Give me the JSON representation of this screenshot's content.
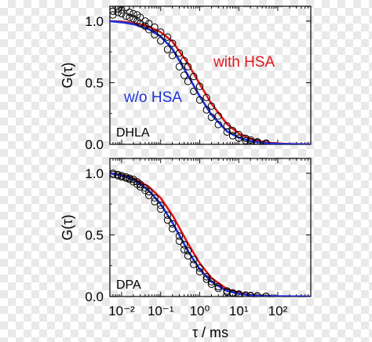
{
  "chart_data": [
    {
      "type": "line",
      "panel_label": "DHLA",
      "ylabel": "G(τ)",
      "xlabel": "",
      "xscale": "log",
      "xlim": [
        0.005,
        700
      ],
      "ylim": [
        0,
        1.12
      ],
      "x_tick_labels": [],
      "y_tick_labels": [
        "0.0",
        "0.5",
        "1.0"
      ],
      "y_ticks": [
        0,
        0.5,
        1.0
      ],
      "series": [
        {
          "name": "with HSA",
          "color": "#e0161b",
          "x": [
            0.005,
            0.01,
            0.02,
            0.05,
            0.1,
            0.2,
            0.5,
            1,
            2,
            5,
            10,
            20,
            50,
            100,
            200,
            500,
            700
          ],
          "y": [
            1.0,
            0.995,
            0.985,
            0.955,
            0.91,
            0.835,
            0.655,
            0.49,
            0.33,
            0.165,
            0.09,
            0.045,
            0.015,
            0.007,
            0.003,
            0.001,
            0.0
          ]
        },
        {
          "name": "w/o HSA",
          "color": "#1b2fd6",
          "x": [
            0.005,
            0.01,
            0.02,
            0.05,
            0.1,
            0.2,
            0.5,
            1,
            2,
            5,
            10,
            20,
            50,
            100,
            200,
            500,
            700
          ],
          "y": [
            1.0,
            0.99,
            0.975,
            0.935,
            0.875,
            0.775,
            0.56,
            0.39,
            0.24,
            0.105,
            0.055,
            0.026,
            0.009,
            0.004,
            0.002,
            0.0,
            0.0
          ]
        },
        {
          "name": "",
          "color": "#000000",
          "x": [
            0.006,
            0.008,
            0.01,
            0.013,
            0.016,
            0.02,
            0.025,
            0.03,
            0.04,
            0.05,
            0.07,
            0.1,
            0.15,
            0.2,
            0.3,
            0.4,
            0.5,
            0.7,
            1,
            1.5,
            2,
            3,
            5,
            7,
            10,
            15,
            20,
            30,
            50
          ],
          "y": [
            1.08,
            1.1,
            1.09,
            1.11,
            1.07,
            1.06,
            1.05,
            1.03,
            1.0,
            0.98,
            0.95,
            0.91,
            0.87,
            0.82,
            0.74,
            0.68,
            0.63,
            0.55,
            0.47,
            0.38,
            0.31,
            0.23,
            0.15,
            0.11,
            0.08,
            0.05,
            0.035,
            0.02,
            0.01
          ]
        },
        {
          "name": "",
          "color": "#000000",
          "x": [
            0.006,
            0.008,
            0.01,
            0.013,
            0.016,
            0.02,
            0.025,
            0.03,
            0.04,
            0.05,
            0.07,
            0.1,
            0.15,
            0.2,
            0.3,
            0.4,
            0.5,
            0.7,
            1,
            1.5,
            2,
            3,
            5,
            7,
            10,
            15,
            20,
            30,
            50
          ],
          "y": [
            1.05,
            1.07,
            1.06,
            1.04,
            1.03,
            1.02,
            1.0,
            0.98,
            0.96,
            0.93,
            0.89,
            0.84,
            0.77,
            0.72,
            0.63,
            0.56,
            0.51,
            0.43,
            0.36,
            0.28,
            0.22,
            0.16,
            0.1,
            0.07,
            0.05,
            0.03,
            0.02,
            0.012,
            0.005
          ]
        }
      ]
    },
    {
      "type": "line",
      "panel_label": "DPA",
      "ylabel": "G(τ)",
      "xlabel": "τ / ms",
      "xscale": "log",
      "xlim": [
        0.005,
        700
      ],
      "ylim": [
        0,
        1.12
      ],
      "x_tick_labels": [
        "10⁻²",
        "10⁻¹",
        "10⁰",
        "10¹",
        "10²"
      ],
      "x_ticks": [
        0.01,
        0.1,
        1,
        10,
        100
      ],
      "y_tick_labels": [
        "0.0",
        "0.5",
        "1.0"
      ],
      "y_ticks": [
        0,
        0.5,
        1.0
      ],
      "series": [
        {
          "name": "",
          "color": "#e0161b",
          "x": [
            0.005,
            0.01,
            0.02,
            0.05,
            0.1,
            0.2,
            0.5,
            1,
            2,
            5,
            10,
            20,
            50,
            100,
            200,
            500,
            700
          ],
          "y": [
            1.0,
            0.985,
            0.96,
            0.89,
            0.8,
            0.66,
            0.43,
            0.27,
            0.15,
            0.06,
            0.03,
            0.013,
            0.005,
            0.002,
            0.001,
            0.0,
            0.0
          ]
        },
        {
          "name": "",
          "color": "#1b2fd6",
          "x": [
            0.005,
            0.01,
            0.02,
            0.05,
            0.1,
            0.2,
            0.5,
            1,
            2,
            5,
            10,
            20,
            50,
            100,
            200,
            500,
            700
          ],
          "y": [
            1.0,
            0.98,
            0.95,
            0.86,
            0.75,
            0.6,
            0.37,
            0.22,
            0.12,
            0.045,
            0.022,
            0.01,
            0.004,
            0.002,
            0.001,
            0.0,
            0.0
          ]
        },
        {
          "name": "",
          "color": "#000000",
          "x": [
            0.006,
            0.008,
            0.01,
            0.013,
            0.016,
            0.02,
            0.025,
            0.03,
            0.04,
            0.05,
            0.07,
            0.1,
            0.15,
            0.2,
            0.3,
            0.4,
            0.5,
            0.7,
            1,
            1.5,
            2,
            3,
            5,
            7,
            10,
            15,
            20,
            30,
            50
          ],
          "y": [
            1.0,
            0.99,
            0.98,
            0.97,
            0.96,
            0.95,
            0.93,
            0.91,
            0.88,
            0.85,
            0.8,
            0.74,
            0.66,
            0.59,
            0.49,
            0.42,
            0.37,
            0.3,
            0.23,
            0.16,
            0.12,
            0.08,
            0.045,
            0.03,
            0.02,
            0.012,
            0.008,
            0.005,
            0.002
          ]
        },
        {
          "name": "",
          "color": "#000000",
          "x": [
            0.006,
            0.008,
            0.01,
            0.013,
            0.016,
            0.02,
            0.025,
            0.03,
            0.04,
            0.05,
            0.07,
            0.1,
            0.15,
            0.2,
            0.3,
            0.4,
            0.5,
            0.7,
            1,
            1.5,
            2,
            3,
            5,
            7,
            10,
            15,
            20,
            30,
            50
          ],
          "y": [
            0.99,
            0.98,
            0.97,
            0.96,
            0.95,
            0.93,
            0.91,
            0.89,
            0.86,
            0.82,
            0.77,
            0.71,
            0.62,
            0.55,
            0.45,
            0.38,
            0.33,
            0.26,
            0.2,
            0.14,
            0.1,
            0.065,
            0.035,
            0.022,
            0.014,
            0.008,
            0.005,
            0.003,
            0.001
          ]
        }
      ]
    }
  ]
}
